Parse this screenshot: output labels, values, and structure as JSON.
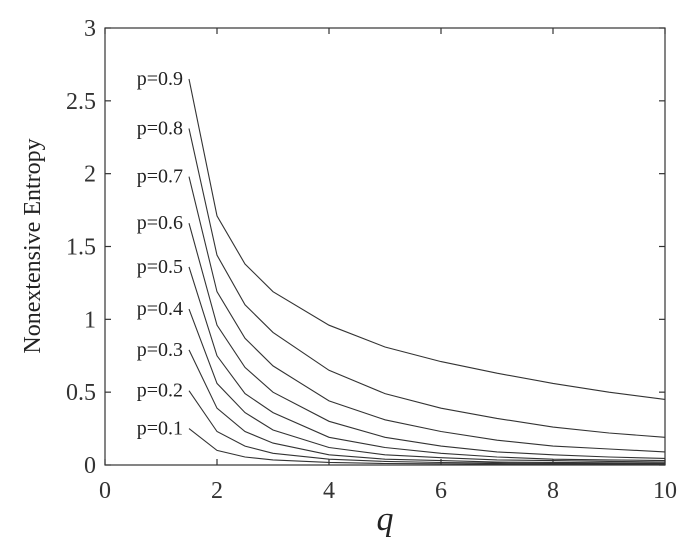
{
  "chart_data": {
    "type": "line",
    "xlabel": "q",
    "ylabel": "Nonextensive Entropy",
    "xlim": [
      0,
      10
    ],
    "ylim": [
      0,
      3
    ],
    "xticks": [
      0,
      2,
      4,
      6,
      8,
      10
    ],
    "yticks": [
      0,
      0.5,
      1,
      1.5,
      2,
      2.5,
      3
    ],
    "ytick_labels": [
      "0",
      "0.5",
      "1",
      "1.5",
      "2",
      "2.5",
      "3"
    ],
    "grid": false,
    "x": [
      1.5,
      2,
      2.5,
      3,
      4,
      5,
      6,
      7,
      8,
      9,
      10
    ],
    "series": [
      {
        "name": "p=0.9",
        "values": [
          2.65,
          1.71,
          1.38,
          1.19,
          0.96,
          0.81,
          0.71,
          0.63,
          0.56,
          0.5,
          0.45
        ]
      },
      {
        "name": "p=0.8",
        "values": [
          2.31,
          1.44,
          1.1,
          0.91,
          0.65,
          0.49,
          0.39,
          0.32,
          0.26,
          0.22,
          0.19
        ]
      },
      {
        "name": "p=0.7",
        "values": [
          1.98,
          1.19,
          0.87,
          0.68,
          0.44,
          0.31,
          0.23,
          0.17,
          0.13,
          0.11,
          0.09
        ]
      },
      {
        "name": "p=0.6",
        "values": [
          1.66,
          0.96,
          0.67,
          0.5,
          0.3,
          0.19,
          0.13,
          0.09,
          0.07,
          0.055,
          0.045
        ]
      },
      {
        "name": "p=0.5",
        "values": [
          1.36,
          0.75,
          0.49,
          0.36,
          0.19,
          0.12,
          0.08,
          0.055,
          0.04,
          0.035,
          0.03
        ]
      },
      {
        "name": "p=0.4",
        "values": [
          1.07,
          0.56,
          0.36,
          0.24,
          0.12,
          0.07,
          0.05,
          0.035,
          0.03,
          0.025,
          0.02
        ]
      },
      {
        "name": "p=0.3",
        "values": [
          0.79,
          0.39,
          0.23,
          0.15,
          0.07,
          0.04,
          0.03,
          0.02,
          0.018,
          0.015,
          0.012
        ]
      },
      {
        "name": "p=0.2",
        "values": [
          0.51,
          0.23,
          0.13,
          0.08,
          0.04,
          0.025,
          0.017,
          0.013,
          0.011,
          0.01,
          0.008
        ]
      },
      {
        "name": "p=0.1",
        "values": [
          0.25,
          0.1,
          0.055,
          0.035,
          0.018,
          0.01,
          0.008,
          0.006,
          0.005,
          0.004,
          0.004
        ]
      }
    ]
  }
}
